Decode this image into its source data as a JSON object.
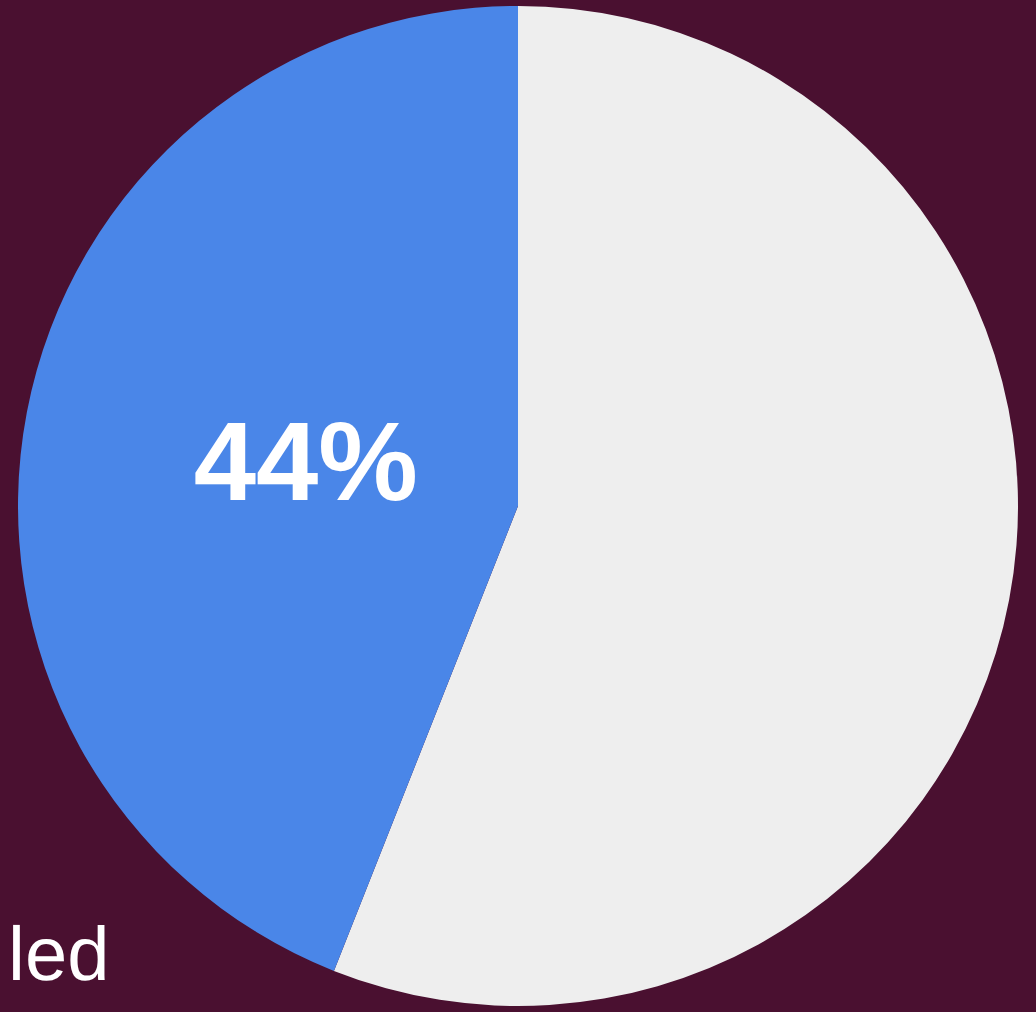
{
  "chart_data": {
    "type": "pie",
    "categories": [
      null,
      null
    ],
    "values": [
      56,
      44
    ],
    "colors": [
      "#eeeeee",
      "#4a86e8"
    ],
    "value_labels": [
      null,
      "44%"
    ],
    "annotations": [
      "led"
    ]
  }
}
